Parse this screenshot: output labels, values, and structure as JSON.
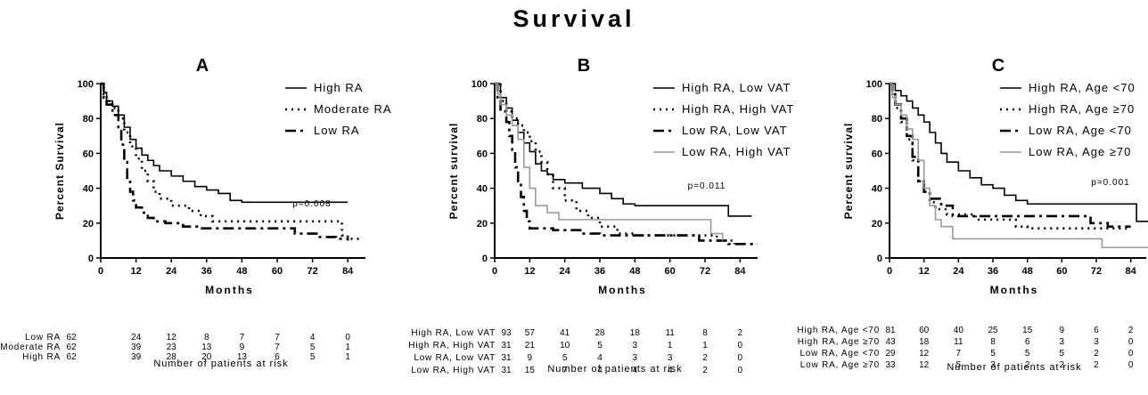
{
  "title": "Survival",
  "chart_data": [
    {
      "panel": "A",
      "type": "line",
      "step": true,
      "ylabel": "Percent Survival",
      "xlabel": "Months",
      "xticks": [
        0,
        12,
        24,
        36,
        48,
        60,
        72,
        84
      ],
      "yticks": [
        0,
        20,
        40,
        60,
        80,
        100
      ],
      "xlim": [
        0,
        90
      ],
      "ylim": [
        0,
        100
      ],
      "pvalue": "p=0.008",
      "legend_position": "top-right",
      "series": [
        {
          "name": "High RA",
          "style": "solid",
          "color": "#000000",
          "points": [
            [
              0,
              100
            ],
            [
              1,
              95
            ],
            [
              2,
              90
            ],
            [
              4,
              87
            ],
            [
              6,
              82
            ],
            [
              8,
              75
            ],
            [
              10,
              68
            ],
            [
              12,
              63
            ],
            [
              14,
              59
            ],
            [
              16,
              56
            ],
            [
              18,
              53
            ],
            [
              20,
              50
            ],
            [
              24,
              47
            ],
            [
              28,
              44
            ],
            [
              32,
              41
            ],
            [
              36,
              39
            ],
            [
              40,
              37
            ],
            [
              44,
              33
            ],
            [
              48,
              32
            ],
            [
              84,
              32
            ]
          ]
        },
        {
          "name": "Moderate RA",
          "style": "dotted",
          "color": "#000000",
          "points": [
            [
              0,
              100
            ],
            [
              1,
              94
            ],
            [
              2,
              90
            ],
            [
              4,
              86
            ],
            [
              6,
              80
            ],
            [
              8,
              72
            ],
            [
              10,
              64
            ],
            [
              12,
              57
            ],
            [
              14,
              50
            ],
            [
              16,
              44
            ],
            [
              18,
              38
            ],
            [
              20,
              34
            ],
            [
              24,
              30
            ],
            [
              30,
              27
            ],
            [
              34,
              24
            ],
            [
              38,
              21
            ],
            [
              80,
              21
            ],
            [
              82,
              13
            ],
            [
              84,
              11
            ],
            [
              88,
              11
            ]
          ]
        },
        {
          "name": "Low RA",
          "style": "dashdot",
          "color": "#000000",
          "points": [
            [
              0,
              100
            ],
            [
              1,
              92
            ],
            [
              2,
              88
            ],
            [
              4,
              82
            ],
            [
              6,
              74
            ],
            [
              7,
              65
            ],
            [
              8,
              55
            ],
            [
              9,
              46
            ],
            [
              10,
              38
            ],
            [
              11,
              33
            ],
            [
              12,
              29
            ],
            [
              14,
              26
            ],
            [
              16,
              23
            ],
            [
              18,
              21
            ],
            [
              22,
              20
            ],
            [
              28,
              18
            ],
            [
              34,
              17
            ],
            [
              56,
              17
            ],
            [
              66,
              14
            ],
            [
              74,
              12
            ],
            [
              80,
              11
            ],
            [
              84,
              10
            ]
          ]
        }
      ],
      "risk_table": {
        "rows": [
          {
            "label": "Low RA",
            "values": [
              "62",
              "24",
              "12",
              "8",
              "7",
              "7",
              "4",
              "0"
            ]
          },
          {
            "label": "Moderate RA",
            "values": [
              "62",
              "39",
              "23",
              "13",
              "9",
              "7",
              "5",
              "1"
            ]
          },
          {
            "label": "High RA",
            "values": [
              "62",
              "39",
              "28",
              "20",
              "13",
              "6",
              "5",
              "1"
            ]
          }
        ],
        "caption": "Number of patients at risk"
      }
    },
    {
      "panel": "B",
      "type": "line",
      "step": true,
      "ylabel": "Percent survival",
      "xlabel": "Months",
      "xticks": [
        0,
        12,
        24,
        36,
        48,
        60,
        72,
        84
      ],
      "yticks": [
        0,
        20,
        40,
        60,
        80,
        100
      ],
      "xlim": [
        0,
        90
      ],
      "ylim": [
        0,
        100
      ],
      "pvalue": "p=0.011",
      "legend_position": "top-right",
      "series": [
        {
          "name": "High RA, Low VAT",
          "style": "solid",
          "color": "#000000",
          "points": [
            [
              0,
              100
            ],
            [
              2,
              92
            ],
            [
              4,
              86
            ],
            [
              6,
              79
            ],
            [
              8,
              72
            ],
            [
              10,
              66
            ],
            [
              12,
              61
            ],
            [
              14,
              54
            ],
            [
              16,
              50
            ],
            [
              18,
              48
            ],
            [
              20,
              45
            ],
            [
              24,
              43
            ],
            [
              30,
              40
            ],
            [
              36,
              37
            ],
            [
              40,
              34
            ],
            [
              44,
              31
            ],
            [
              48,
              30
            ],
            [
              72,
              30
            ],
            [
              80,
              24
            ],
            [
              88,
              24
            ]
          ]
        },
        {
          "name": "High RA, High VAT",
          "style": "dotted",
          "color": "#000000",
          "points": [
            [
              0,
              100
            ],
            [
              2,
              90
            ],
            [
              4,
              84
            ],
            [
              6,
              80
            ],
            [
              8,
              76
            ],
            [
              10,
              72
            ],
            [
              12,
              67
            ],
            [
              14,
              61
            ],
            [
              16,
              55
            ],
            [
              18,
              48
            ],
            [
              20,
              40
            ],
            [
              24,
              33
            ],
            [
              28,
              27
            ],
            [
              32,
              23
            ],
            [
              36,
              18
            ],
            [
              42,
              14
            ],
            [
              48,
              13
            ],
            [
              60,
              13
            ],
            [
              76,
              10
            ],
            [
              82,
              8
            ]
          ]
        },
        {
          "name": "Low RA, Low VAT",
          "style": "dashdot",
          "color": "#000000",
          "points": [
            [
              0,
              100
            ],
            [
              1,
              90
            ],
            [
              2,
              84
            ],
            [
              4,
              78
            ],
            [
              5,
              70
            ],
            [
              6,
              62
            ],
            [
              7,
              52
            ],
            [
              8,
              44
            ],
            [
              9,
              35
            ],
            [
              10,
              27
            ],
            [
              11,
              21
            ],
            [
              12,
              17
            ],
            [
              20,
              16
            ],
            [
              30,
              14
            ],
            [
              36,
              13
            ],
            [
              60,
              13
            ],
            [
              70,
              10
            ],
            [
              80,
              8
            ],
            [
              90,
              8
            ]
          ]
        },
        {
          "name": "Low RA, High VAT",
          "style": "solid",
          "color": "#999999",
          "points": [
            [
              0,
              100
            ],
            [
              1,
              94
            ],
            [
              2,
              88
            ],
            [
              4,
              82
            ],
            [
              6,
              76
            ],
            [
              8,
              68
            ],
            [
              10,
              52
            ],
            [
              12,
              40
            ],
            [
              14,
              30
            ],
            [
              18,
              26
            ],
            [
              22,
              22
            ],
            [
              72,
              22
            ],
            [
              74,
              14
            ],
            [
              78,
              10
            ]
          ]
        }
      ],
      "risk_table": {
        "rows": [
          {
            "label": "High RA, Low VAT",
            "values": [
              "93",
              "57",
              "41",
              "28",
              "18",
              "11",
              "8",
              "2"
            ]
          },
          {
            "label": "High RA, High VAT",
            "values": [
              "31",
              "21",
              "10",
              "5",
              "3",
              "1",
              "1",
              "0"
            ]
          },
          {
            "label": "Low RA, Low VAT",
            "values": [
              "31",
              "9",
              "5",
              "4",
              "3",
              "3",
              "2",
              "0"
            ]
          },
          {
            "label": "Low RA, High VAT",
            "values": [
              "31",
              "15",
              "7",
              "4",
              "4",
              "4",
              "2",
              "0"
            ]
          }
        ],
        "caption": "Number of patients at risk"
      }
    },
    {
      "panel": "C",
      "type": "line",
      "step": true,
      "ylabel": "Percent survival",
      "xlabel": "Months",
      "xticks": [
        0,
        12,
        24,
        36,
        48,
        60,
        72,
        84
      ],
      "yticks": [
        0,
        20,
        40,
        60,
        80,
        100
      ],
      "xlim": [
        0,
        90
      ],
      "ylim": [
        0,
        100
      ],
      "pvalue": "p=0.001",
      "legend_position": "top-right",
      "series": [
        {
          "name": "High RA, Age <70",
          "style": "solid",
          "color": "#000000",
          "points": [
            [
              0,
              100
            ],
            [
              2,
              96
            ],
            [
              4,
              93
            ],
            [
              6,
              90
            ],
            [
              8,
              86
            ],
            [
              10,
              82
            ],
            [
              12,
              78
            ],
            [
              14,
              72
            ],
            [
              16,
              66
            ],
            [
              18,
              60
            ],
            [
              20,
              55
            ],
            [
              24,
              50
            ],
            [
              28,
              46
            ],
            [
              32,
              42
            ],
            [
              36,
              40
            ],
            [
              40,
              36
            ],
            [
              44,
              33
            ],
            [
              48,
              31
            ],
            [
              84,
              31
            ],
            [
              86,
              21
            ],
            [
              90,
              21
            ]
          ]
        },
        {
          "name": "High RA, Age ≥70",
          "style": "dotted",
          "color": "#000000",
          "points": [
            [
              0,
              100
            ],
            [
              1,
              92
            ],
            [
              2,
              86
            ],
            [
              4,
              78
            ],
            [
              6,
              68
            ],
            [
              8,
              56
            ],
            [
              10,
              44
            ],
            [
              12,
              38
            ],
            [
              14,
              32
            ],
            [
              16,
              28
            ],
            [
              20,
              25
            ],
            [
              30,
              22
            ],
            [
              44,
              18
            ],
            [
              48,
              17
            ],
            [
              84,
              17
            ]
          ]
        },
        {
          "name": "Low RA, Age <70",
          "style": "dashdot",
          "color": "#000000",
          "points": [
            [
              0,
              100
            ],
            [
              1,
              94
            ],
            [
              2,
              88
            ],
            [
              4,
              80
            ],
            [
              6,
              70
            ],
            [
              8,
              58
            ],
            [
              10,
              44
            ],
            [
              12,
              38
            ],
            [
              14,
              34
            ],
            [
              18,
              30
            ],
            [
              22,
              24
            ],
            [
              66,
              24
            ],
            [
              70,
              20
            ],
            [
              76,
              18
            ],
            [
              84,
              18
            ]
          ]
        },
        {
          "name": "Low RA, Age ≥70",
          "style": "solid",
          "color": "#999999",
          "points": [
            [
              0,
              100
            ],
            [
              1,
              92
            ],
            [
              2,
              88
            ],
            [
              4,
              82
            ],
            [
              6,
              74
            ],
            [
              8,
              68
            ],
            [
              10,
              56
            ],
            [
              12,
              40
            ],
            [
              14,
              30
            ],
            [
              16,
              22
            ],
            [
              18,
              18
            ],
            [
              22,
              11
            ],
            [
              30,
              11
            ],
            [
              32,
              11
            ],
            [
              72,
              11
            ],
            [
              74,
              6
            ],
            [
              90,
              6
            ]
          ]
        }
      ],
      "risk_table": {
        "rows": [
          {
            "label": "High RA, Age <70",
            "values": [
              "81",
              "60",
              "40",
              "25",
              "15",
              "9",
              "6",
              "2"
            ]
          },
          {
            "label": "High RA, Age ≥70",
            "values": [
              "43",
              "18",
              "11",
              "8",
              "6",
              "3",
              "3",
              "0"
            ]
          },
          {
            "label": "Low RA, Age <70",
            "values": [
              "29",
              "12",
              "7",
              "5",
              "5",
              "5",
              "2",
              "0"
            ]
          },
          {
            "label": "Low RA, Age ≥70",
            "values": [
              "33",
              "12",
              "5",
              "3",
              "2",
              "2",
              "2",
              "0"
            ]
          }
        ],
        "caption": "Number of patients at risk"
      }
    }
  ]
}
